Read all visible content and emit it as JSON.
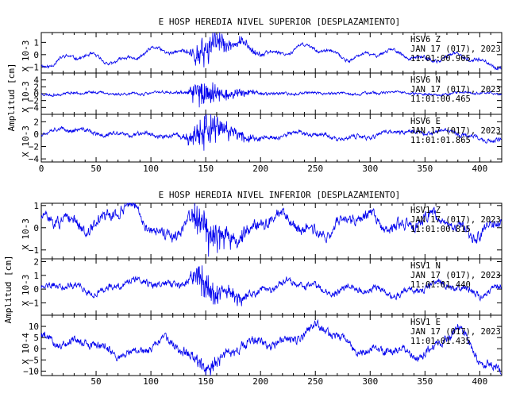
{
  "chart_data": [
    {
      "type": "line",
      "title": "E HOSP HEREDIA NIVEL SUPERIOR [DESPLAZAMIENTO]",
      "ylabel": "Amplitud [cm]",
      "xlim": [
        0,
        420
      ],
      "xticks": [
        0,
        50,
        100,
        150,
        200,
        250,
        300,
        350,
        400
      ],
      "series": [
        {
          "name": "HSV6 Z",
          "station": "HSV6",
          "component": "Z",
          "date": "JAN 17 (017), 2023",
          "time": "11:01:00.905",
          "scale": "X 10-3",
          "ylim": [
            -1.5,
            1.8
          ],
          "yticks": [
            -1,
            0,
            1
          ],
          "profile": {
            "noise": 0.12,
            "drift": 0.55,
            "burst_amp": 1.4,
            "burst_center": 150,
            "burst_width": 14,
            "seed": 11
          },
          "tail_x": [
            10,
            60,
            100,
            140,
            160,
            200,
            250,
            300,
            340,
            400
          ],
          "tail_y": [
            -0.5,
            -0.3,
            0.0,
            0.4,
            0.8,
            0.4,
            0.3,
            -0.1,
            0.0,
            -0.6
          ]
        },
        {
          "name": "HSV6 N",
          "station": "HSV6",
          "component": "N",
          "date": "JAN 17 (017), 2023",
          "time": "11:01:00.465",
          "scale": "X 10-3",
          "ylim": [
            -6,
            6
          ],
          "yticks": [
            -4,
            -2,
            0,
            2,
            4
          ],
          "profile": {
            "noise": 0.35,
            "drift": 0.4,
            "burst_amp": 5.0,
            "burst_center": 148,
            "burst_width": 12,
            "seed": 23
          },
          "tail_x": [
            10,
            60,
            100,
            140,
            160,
            200,
            250,
            300,
            350,
            400
          ],
          "tail_y": [
            0.0,
            0.2,
            0.0,
            0.5,
            -0.5,
            0.3,
            0.0,
            0.2,
            0.0,
            0.1
          ]
        },
        {
          "name": "HSV6 E",
          "station": "HSV6",
          "component": "E",
          "date": "JAN 17 (017), 2023",
          "time": "11:01:01.865",
          "scale": "X 10-3",
          "ylim": [
            -4.5,
            3.2
          ],
          "yticks": [
            -4,
            -2,
            0,
            2
          ],
          "profile": {
            "noise": 0.3,
            "drift": 0.6,
            "burst_amp": 3.6,
            "burst_center": 150,
            "burst_width": 14,
            "seed": 37
          },
          "tail_x": [
            10,
            60,
            100,
            140,
            160,
            200,
            250,
            300,
            330,
            360,
            400
          ],
          "tail_y": [
            0.5,
            0.3,
            -0.4,
            0.0,
            0.5,
            -0.5,
            0.0,
            -0.8,
            0.8,
            0.3,
            -0.6
          ]
        }
      ]
    },
    {
      "type": "line",
      "title": "E HOSP HEREDIA NIVEL INFERIOR [DESPLAZAMIENTO]",
      "ylabel": "Amplitud [cm]",
      "xlim": [
        0,
        420
      ],
      "xticks": [
        50,
        100,
        150,
        200,
        250,
        300,
        350,
        400
      ],
      "series": [
        {
          "name": "HSV1 Z",
          "station": "HSV1",
          "component": "Z",
          "date": "JAN 17 (017), 2023",
          "time": "11:01:00.815",
          "scale": "X 10-3",
          "ylim": [
            -1.4,
            1.1
          ],
          "yticks": [
            -1,
            0,
            1
          ],
          "profile": {
            "noise": 0.22,
            "drift": 0.5,
            "burst_amp": 0.9,
            "burst_center": 150,
            "burst_width": 14,
            "seed": 51
          },
          "tail_x": [
            10,
            50,
            80,
            110,
            140,
            155,
            200,
            250,
            300,
            350,
            400
          ],
          "tail_y": [
            0.1,
            0.4,
            0.7,
            -0.2,
            0.2,
            -0.6,
            0.3,
            0.0,
            0.3,
            0.2,
            0.0
          ]
        },
        {
          "name": "HSV1 N",
          "station": "HSV1",
          "component": "N",
          "date": "JAN 17 (017), 2023",
          "time": "11:01:01.440",
          "scale": "X 10-3",
          "ylim": [
            -1.9,
            2.2
          ],
          "yticks": [
            -1,
            0,
            1,
            2
          ],
          "profile": {
            "noise": 0.22,
            "drift": 0.5,
            "burst_amp": 1.6,
            "burst_center": 148,
            "burst_width": 10,
            "seed": 63
          },
          "tail_x": [
            10,
            60,
            100,
            145,
            160,
            200,
            250,
            300,
            350,
            400
          ],
          "tail_y": [
            0.0,
            0.2,
            0.4,
            0.8,
            -0.6,
            0.0,
            0.3,
            -0.3,
            0.1,
            0.0
          ]
        },
        {
          "name": "HSV1 E",
          "station": "HSV1",
          "component": "E",
          "date": "JAN 17 (017), 2023",
          "time": "11:01:01.435",
          "scale": "X 10-4",
          "ylim": [
            -12,
            15
          ],
          "yticks": [
            -10,
            -5,
            0,
            5,
            10
          ],
          "profile": {
            "noise": 1.6,
            "drift": 3.5,
            "burst_amp": 3.0,
            "burst_center": 150,
            "burst_width": 16,
            "seed": 79
          },
          "tail_x": [
            10,
            60,
            110,
            150,
            200,
            250,
            300,
            340,
            380,
            400,
            410
          ],
          "tail_y": [
            6,
            -2,
            2,
            -6,
            2,
            8,
            0,
            -4,
            10,
            -8,
            -9
          ]
        }
      ]
    }
  ]
}
